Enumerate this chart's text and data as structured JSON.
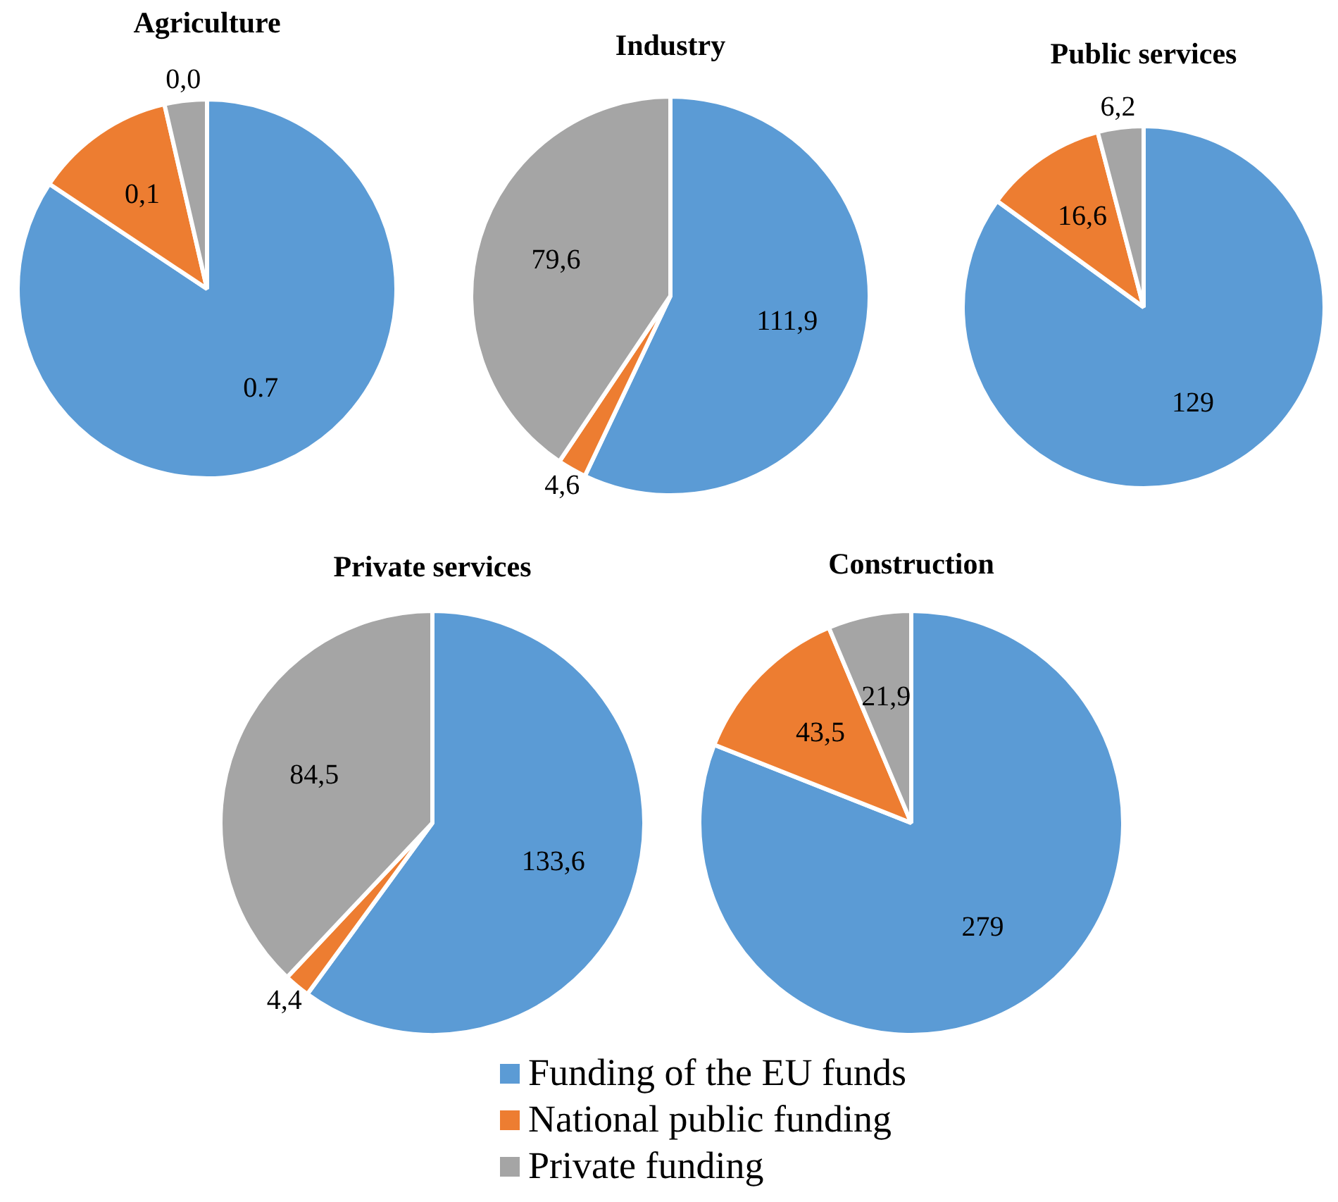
{
  "chart_data": [
    {
      "type": "pie",
      "title": "Agriculture",
      "values": [
        0.7,
        0.1,
        0.03
      ],
      "value_labels": [
        "0.7",
        "0,1",
        "0,0"
      ],
      "colors": [
        "#5b9bd5",
        "#ed7d31",
        "#a5a5a5"
      ]
    },
    {
      "type": "pie",
      "title": "Industry",
      "values": [
        111.9,
        4.6,
        79.6
      ],
      "value_labels": [
        "111,9",
        "4,6",
        "79,6"
      ],
      "colors": [
        "#5b9bd5",
        "#ed7d31",
        "#a5a5a5"
      ]
    },
    {
      "type": "pie",
      "title": "Public services",
      "values": [
        129,
        16.6,
        6.2
      ],
      "value_labels": [
        "129",
        "16,6",
        "6,2"
      ],
      "colors": [
        "#5b9bd5",
        "#ed7d31",
        "#a5a5a5"
      ]
    },
    {
      "type": "pie",
      "title": "Private services",
      "values": [
        133.6,
        4.4,
        84.5
      ],
      "value_labels": [
        "133,6",
        "4,4",
        "84,5"
      ],
      "colors": [
        "#5b9bd5",
        "#ed7d31",
        "#a5a5a5"
      ]
    },
    {
      "type": "pie",
      "title": "Construction",
      "categories": [
        "Funding of the EU funds",
        "National public funding",
        "Private funding"
      ],
      "values": [
        279,
        43.5,
        21.9
      ],
      "value_labels": [
        "279",
        "43,5",
        "21,9"
      ],
      "colors": [
        "#5b9bd5",
        "#ed7d31",
        "#a5a5a5"
      ],
      "legend": "bottom"
    }
  ]
}
